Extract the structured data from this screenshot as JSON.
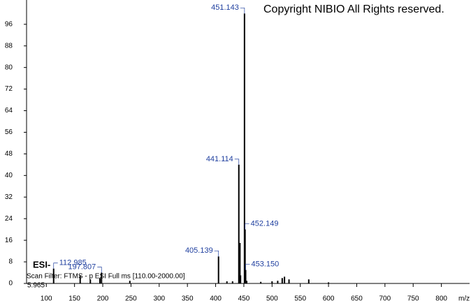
{
  "chart_data": {
    "type": "spectrum",
    "title": "Copyright NIBIO All Rights reserved.",
    "ion_mode": "ESI-",
    "scan_filter": "Scan Filter: FTMS - p ESI Full ms [110.00-2000.00]",
    "retention_time": "5.965",
    "x_label": "m/z",
    "x": [
      112.985,
      160,
      178,
      195,
      197.807,
      248,
      405.139,
      420,
      430,
      441.114,
      442.1,
      443.1,
      444.1,
      451.143,
      452.149,
      453.15,
      455,
      480,
      500,
      510,
      518,
      522,
      530,
      565,
      600
    ],
    "values": [
      5.5,
      3,
      1.5,
      2,
      4,
      1,
      10,
      0.8,
      0.8,
      44,
      9,
      15,
      3,
      100,
      20,
      5,
      1,
      0.6,
      0.8,
      1,
      2,
      2.5,
      1.5,
      1.5,
      0.4
    ],
    "peak_labels": [
      "112.985",
      null,
      null,
      null,
      "197.807",
      null,
      "405.139",
      null,
      null,
      "441.114",
      null,
      null,
      null,
      "451.143",
      "452.149",
      "453.150",
      null,
      null,
      null,
      null,
      null,
      null,
      null,
      null,
      null
    ],
    "color": "#000000",
    "label_color": "#1f3f9f",
    "xlim": [
      65,
      850
    ],
    "ylim": [
      0,
      105
    ],
    "xticks": [
      100,
      150,
      200,
      250,
      300,
      350,
      400,
      450,
      500,
      550,
      600,
      650,
      700,
      750,
      800
    ],
    "yticks": [
      0,
      8,
      16,
      24,
      32,
      40,
      48,
      56,
      64,
      72,
      80,
      88,
      96
    ]
  }
}
